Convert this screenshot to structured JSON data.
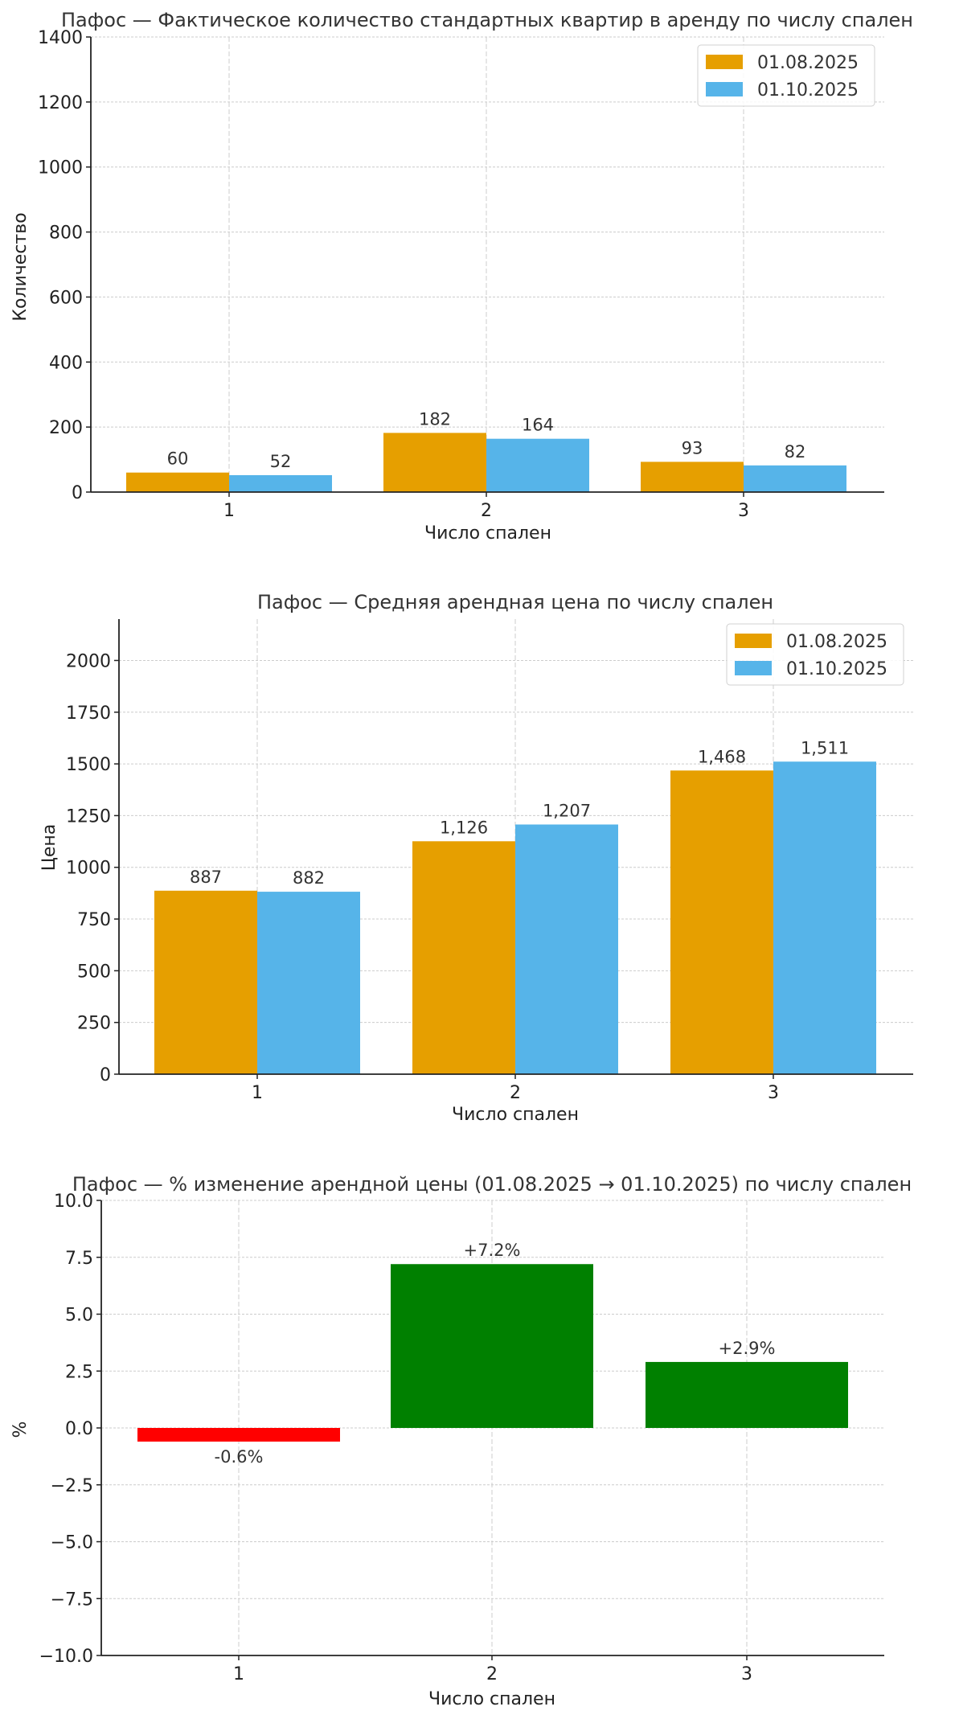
{
  "chart_data": [
    {
      "type": "bar",
      "title": "Пафос — Фактическое количество стандартных квартир в аренду по числу спален",
      "xlabel": "Число спален",
      "ylabel": "Количество",
      "categories": [
        "1",
        "2",
        "3"
      ],
      "series": [
        {
          "name": "01.08.2025",
          "color": "#E69F00",
          "values": [
            60,
            182,
            93
          ],
          "labels": [
            "60",
            "182",
            "93"
          ]
        },
        {
          "name": "01.10.2025",
          "color": "#56B4E9",
          "values": [
            52,
            164,
            82
          ],
          "labels": [
            "52",
            "164",
            "82"
          ]
        }
      ],
      "ylim": [
        0,
        1400
      ],
      "yticks": [
        0,
        200,
        400,
        600,
        800,
        1000,
        1200,
        1400
      ],
      "ytick_labels": [
        "0",
        "200",
        "400",
        "600",
        "800",
        "1000",
        "1200",
        "1400"
      ],
      "grid": true,
      "legend": "top-right"
    },
    {
      "type": "bar",
      "title": "Пафос — Средняя арендная цена по числу спален",
      "xlabel": "Число спален",
      "ylabel": "Цена",
      "categories": [
        "1",
        "2",
        "3"
      ],
      "series": [
        {
          "name": "01.08.2025",
          "color": "#E69F00",
          "values": [
            887,
            1126,
            1468
          ],
          "labels": [
            "887",
            "1,126",
            "1,468"
          ]
        },
        {
          "name": "01.10.2025",
          "color": "#56B4E9",
          "values": [
            882,
            1207,
            1511
          ],
          "labels": [
            "882",
            "1,207",
            "1,511"
          ]
        }
      ],
      "ylim": [
        0,
        2200
      ],
      "yticks": [
        0,
        250,
        500,
        750,
        1000,
        1250,
        1500,
        1750,
        2000
      ],
      "ytick_labels": [
        "0",
        "250",
        "500",
        "750",
        "1000",
        "1250",
        "1500",
        "1750",
        "2000"
      ],
      "grid": true,
      "legend": "top-right"
    },
    {
      "type": "bar",
      "title": "Пафос — % изменение арендной цены (01.08.2025 → 01.10.2025) по числу спален",
      "xlabel": "Число спален",
      "ylabel": "%",
      "categories": [
        "1",
        "2",
        "3"
      ],
      "values": [
        -0.6,
        7.2,
        2.9
      ],
      "labels": [
        "-0.6%",
        "+7.2%",
        "+2.9%"
      ],
      "colors": [
        "#FF0000",
        "#008000",
        "#008000"
      ],
      "ylim": [
        -10,
        10
      ],
      "yticks": [
        -10,
        -7.5,
        -5,
        -2.5,
        0,
        2.5,
        5,
        7.5,
        10
      ],
      "ytick_labels": [
        "−10.0",
        "−7.5",
        "−5.0",
        "−2.5",
        "0.0",
        "2.5",
        "5.0",
        "7.5",
        "10.0"
      ],
      "grid": true,
      "legend": "none"
    }
  ]
}
